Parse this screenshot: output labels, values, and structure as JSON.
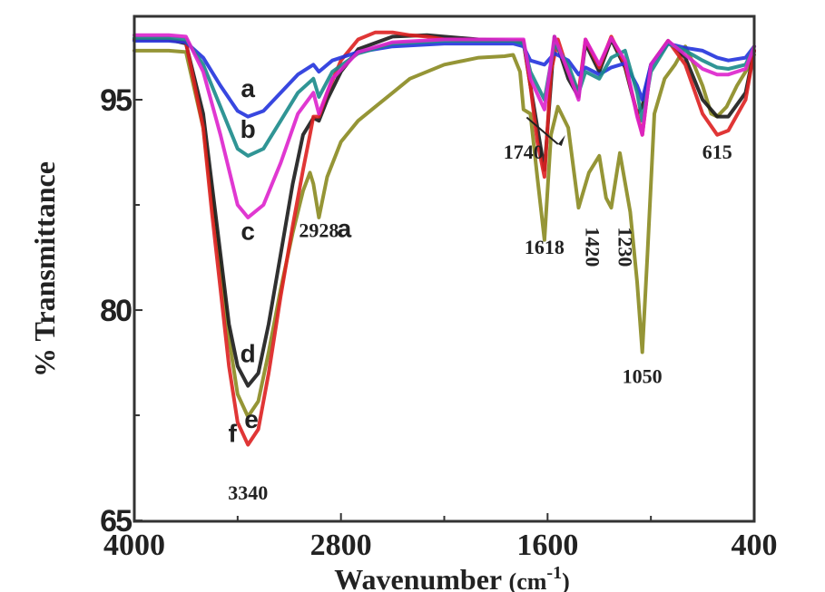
{
  "chart_data": {
    "type": "line",
    "title": "",
    "xlabel": "Wavenumber (cm-1)",
    "xlabel_main": "Wavenumber ",
    "xlabel_unit": "(cm",
    "xlabel_sup": "-1",
    "xlabel_close": ")",
    "ylabel": "% Transmittance",
    "xlim": [
      4000,
      400
    ],
    "ylim": [
      65,
      101
    ],
    "x_reversed": true,
    "grid": false,
    "legend": "none (curves labeled inline a–f)",
    "x_ticks": [
      4000,
      2800,
      1600,
      400
    ],
    "x_tick_labels": [
      "4000",
      "2800",
      "1600",
      "400"
    ],
    "x_minor_ticks": [
      3400,
      2200,
      1000
    ],
    "y_ticks": [
      95,
      80,
      65
    ],
    "y_tick_labels": [
      "95",
      "80",
      "65"
    ],
    "y_minor_ticks": [
      87.5,
      72.5
    ],
    "series": [
      {
        "name": "a",
        "color": "#2233dd",
        "x": [
          4000,
          3800,
          3700,
          3600,
          3500,
          3400,
          3340,
          3250,
          3150,
          3050,
          2960,
          2928,
          2850,
          2700,
          2500,
          2200,
          2000,
          1800,
          1740,
          1700,
          1618,
          1560,
          1480,
          1420,
          1380,
          1300,
          1230,
          1150,
          1080,
          1050,
          1000,
          900,
          800,
          700,
          615,
          550,
          450,
          400
        ],
        "y": [
          99.2,
          99.2,
          99.1,
          98.0,
          96.0,
          94.2,
          93.8,
          94.2,
          95.5,
          96.8,
          97.5,
          97.0,
          97.8,
          98.4,
          98.8,
          99.0,
          99.0,
          99.0,
          98.8,
          97.8,
          97.5,
          98.3,
          97.8,
          96.8,
          97.3,
          96.8,
          97.3,
          97.6,
          96.0,
          95.0,
          97.5,
          99.0,
          98.7,
          98.5,
          98.0,
          97.8,
          98.0,
          98.8
        ]
      },
      {
        "name": "b",
        "color": "#1a8a8a",
        "x": [
          4000,
          3800,
          3700,
          3600,
          3500,
          3400,
          3340,
          3250,
          3150,
          3050,
          2960,
          2928,
          2850,
          2700,
          2500,
          2200,
          2000,
          1800,
          1740,
          1700,
          1618,
          1560,
          1480,
          1420,
          1380,
          1300,
          1230,
          1150,
          1080,
          1050,
          1000,
          900,
          800,
          700,
          615,
          550,
          450,
          400
        ],
        "y": [
          99.4,
          99.4,
          99.3,
          97.5,
          94.5,
          91.5,
          91.0,
          91.5,
          93.5,
          95.5,
          96.5,
          95.2,
          97.0,
          98.3,
          99.0,
          99.2,
          99.2,
          99.2,
          99.0,
          97.0,
          95.0,
          99.0,
          97.5,
          95.5,
          97.0,
          96.5,
          98.0,
          98.5,
          95.5,
          93.5,
          97.0,
          99.0,
          98.5,
          97.8,
          97.3,
          97.2,
          97.5,
          98.8
        ]
      },
      {
        "name": "c",
        "color": "#dd22cc",
        "x": [
          4000,
          3800,
          3700,
          3600,
          3500,
          3400,
          3340,
          3250,
          3150,
          3050,
          2960,
          2928,
          2850,
          2700,
          2500,
          2200,
          2000,
          1800,
          1740,
          1700,
          1618,
          1560,
          1480,
          1420,
          1380,
          1300,
          1230,
          1150,
          1080,
          1050,
          1000,
          900,
          800,
          700,
          615,
          550,
          450,
          400
        ],
        "y": [
          99.6,
          99.6,
          99.5,
          97.0,
          92.5,
          87.5,
          86.6,
          87.5,
          90.5,
          94.0,
          95.5,
          94.0,
          96.5,
          98.4,
          99.1,
          99.3,
          99.3,
          99.3,
          99.3,
          96.5,
          94.3,
          99.5,
          97.0,
          95.0,
          99.3,
          97.5,
          99.4,
          97.8,
          93.8,
          92.5,
          97.5,
          99.2,
          98.2,
          97.2,
          96.8,
          96.8,
          97.2,
          98.8
        ]
      },
      {
        "name": "d",
        "color": "#1a1a1a",
        "x": [
          4000,
          3800,
          3700,
          3600,
          3550,
          3500,
          3450,
          3400,
          3340,
          3280,
          3220,
          3150,
          3080,
          3020,
          2960,
          2928,
          2880,
          2800,
          2700,
          2500,
          2300,
          2200,
          2000,
          1800,
          1740,
          1700,
          1618,
          1560,
          1480,
          1420,
          1380,
          1300,
          1230,
          1150,
          1080,
          1050,
          1000,
          900,
          800,
          700,
          615,
          550,
          450,
          400
        ],
        "y": [
          99.3,
          99.3,
          99.0,
          94.0,
          89.0,
          84.0,
          79.0,
          76.0,
          74.6,
          75.5,
          79.0,
          84.0,
          89.0,
          92.5,
          93.7,
          93.5,
          95.0,
          97.0,
          98.6,
          99.5,
          99.6,
          99.5,
          99.3,
          99.2,
          99.1,
          96.0,
          90.0,
          99.5,
          96.5,
          95.2,
          99.0,
          97.0,
          99.3,
          97.3,
          94.0,
          94.5,
          97.5,
          99.2,
          98.0,
          95.0,
          93.8,
          93.8,
          95.5,
          98.5
        ]
      },
      {
        "name": "e",
        "color": "#8a8a20",
        "x": [
          4000,
          3800,
          3700,
          3600,
          3550,
          3500,
          3450,
          3400,
          3340,
          3280,
          3220,
          3150,
          3080,
          3020,
          2980,
          2960,
          2928,
          2880,
          2800,
          2700,
          2600,
          2500,
          2400,
          2200,
          2000,
          1850,
          1800,
          1760,
          1740,
          1700,
          1660,
          1618,
          1580,
          1540,
          1480,
          1420,
          1360,
          1300,
          1260,
          1230,
          1180,
          1120,
          1080,
          1050,
          1020,
          980,
          920,
          860,
          800,
          750,
          700,
          650,
          615,
          560,
          500,
          450,
          400
        ],
        "y": [
          98.5,
          98.5,
          98.4,
          93.0,
          88.0,
          83.0,
          78.0,
          74.0,
          72.4,
          73.5,
          77.0,
          81.5,
          85.5,
          88.5,
          89.8,
          89.0,
          86.6,
          89.5,
          92.0,
          93.5,
          94.5,
          95.5,
          96.5,
          97.5,
          98.0,
          98.1,
          98.2,
          97.0,
          94.3,
          94.0,
          89.5,
          85.0,
          92.5,
          94.5,
          93.0,
          87.3,
          89.8,
          91.0,
          88.0,
          87.3,
          91.2,
          87.0,
          82.0,
          77.0,
          84.0,
          94.0,
          96.5,
          97.5,
          98.8,
          97.5,
          96.0,
          94.0,
          93.8,
          94.5,
          96.0,
          97.0,
          98.2
        ]
      },
      {
        "name": "f",
        "color": "#dd2020",
        "x": [
          4000,
          3800,
          3700,
          3600,
          3550,
          3500,
          3450,
          3400,
          3340,
          3280,
          3220,
          3150,
          3080,
          3020,
          2980,
          2960,
          2928,
          2880,
          2800,
          2700,
          2600,
          2500,
          2400,
          2300,
          2200,
          2000,
          1800,
          1740,
          1700,
          1660,
          1618,
          1580,
          1540,
          1480,
          1420,
          1380,
          1300,
          1230,
          1150,
          1080,
          1050,
          1000,
          900,
          800,
          700,
          615,
          550,
          450,
          400
        ],
        "y": [
          99.3,
          99.3,
          99.1,
          93.0,
          87.0,
          81.5,
          76.0,
          72.0,
          70.4,
          71.5,
          75.5,
          81.0,
          86.0,
          90.0,
          92.5,
          93.8,
          93.8,
          95.5,
          97.8,
          99.3,
          99.8,
          99.8,
          99.6,
          99.5,
          99.3,
          99.2,
          99.2,
          99.2,
          96.0,
          92.0,
          89.5,
          97.0,
          99.3,
          97.0,
          95.5,
          99.3,
          97.3,
          99.5,
          97.5,
          94.0,
          92.5,
          97.5,
          99.2,
          97.5,
          94.0,
          92.5,
          92.8,
          95.0,
          98.5
        ]
      }
    ],
    "annotations": [
      {
        "text": "3340",
        "x": 3340,
        "y": 66.5
      },
      {
        "text": "2928",
        "x": 2928,
        "y": 85.2
      },
      {
        "text": "1740",
        "x": 1740,
        "y": 90.8,
        "arrow_to": {
          "x": 1700,
          "y": 94.0
        }
      },
      {
        "text": "1618",
        "x": 1618,
        "y": 84.0
      },
      {
        "text": "1420",
        "x": 1420,
        "y": 84.5,
        "rotated": true
      },
      {
        "text": "1230",
        "x": 1230,
        "y": 84.5,
        "rotated": true
      },
      {
        "text": "1050",
        "x": 1050,
        "y": 74.8
      },
      {
        "text": "615",
        "x": 615,
        "y": 90.8
      }
    ],
    "curve_labels": [
      {
        "text": "a",
        "x": 3340,
        "y": 95.2
      },
      {
        "text": "b",
        "x": 3340,
        "y": 92.3
      },
      {
        "text": "c",
        "x": 3340,
        "y": 85.0
      },
      {
        "text": "a",
        "x": 2780,
        "y": 85.2
      },
      {
        "text": "d",
        "x": 3340,
        "y": 76.3
      },
      {
        "text": "e",
        "x": 3320,
        "y": 71.6
      },
      {
        "text": "f",
        "x": 3430,
        "y": 70.6
      }
    ]
  },
  "axes": {
    "x_title": "Wavenumber (cm-1)",
    "y_title": "% Transmittance"
  }
}
